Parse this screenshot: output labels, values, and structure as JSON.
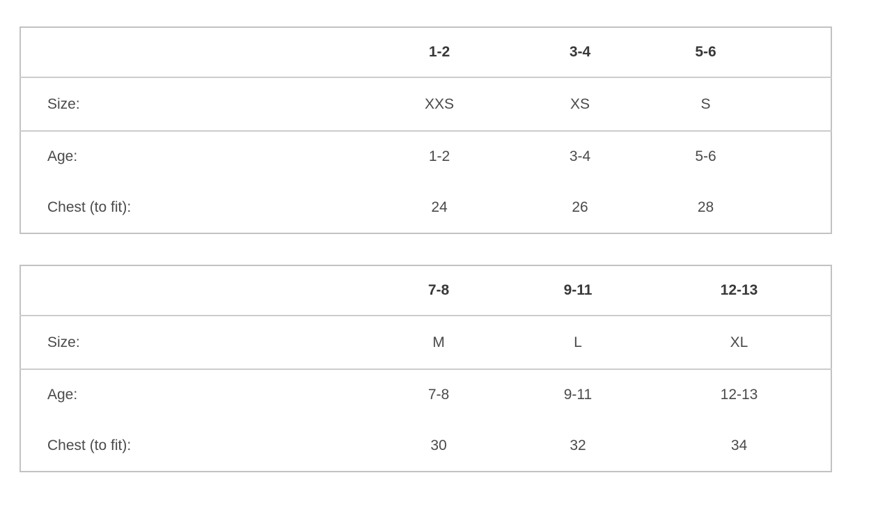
{
  "page": {
    "background": "#ffffff"
  },
  "colors": {
    "border_outer": "#c2c2c2",
    "border_inner": "#cccccc",
    "header_text": "#383838",
    "body_text": "#4a4a4a"
  },
  "tables": [
    {
      "name": "size-chart-ages-1-6",
      "headers": [
        "",
        "1-2",
        "3-4",
        "5-6"
      ],
      "rows": [
        {
          "label": "Size:",
          "values": [
            "XXS",
            "XS",
            "S"
          ]
        },
        {
          "label": "Age:",
          "values": [
            "1-2",
            "3-4",
            "5-6"
          ]
        },
        {
          "label": "Chest (to fit):",
          "values": [
            "24",
            "26",
            "28"
          ]
        }
      ]
    },
    {
      "name": "size-chart-ages-7-13",
      "headers": [
        "",
        "7-8",
        "9-11",
        "12-13"
      ],
      "rows": [
        {
          "label": "Size:",
          "values": [
            "M",
            "L",
            "XL"
          ]
        },
        {
          "label": "Age:",
          "values": [
            "7-8",
            "9-11",
            "12-13"
          ]
        },
        {
          "label": "Chest (to fit):",
          "values": [
            "30",
            "32",
            "34"
          ]
        }
      ]
    }
  ]
}
